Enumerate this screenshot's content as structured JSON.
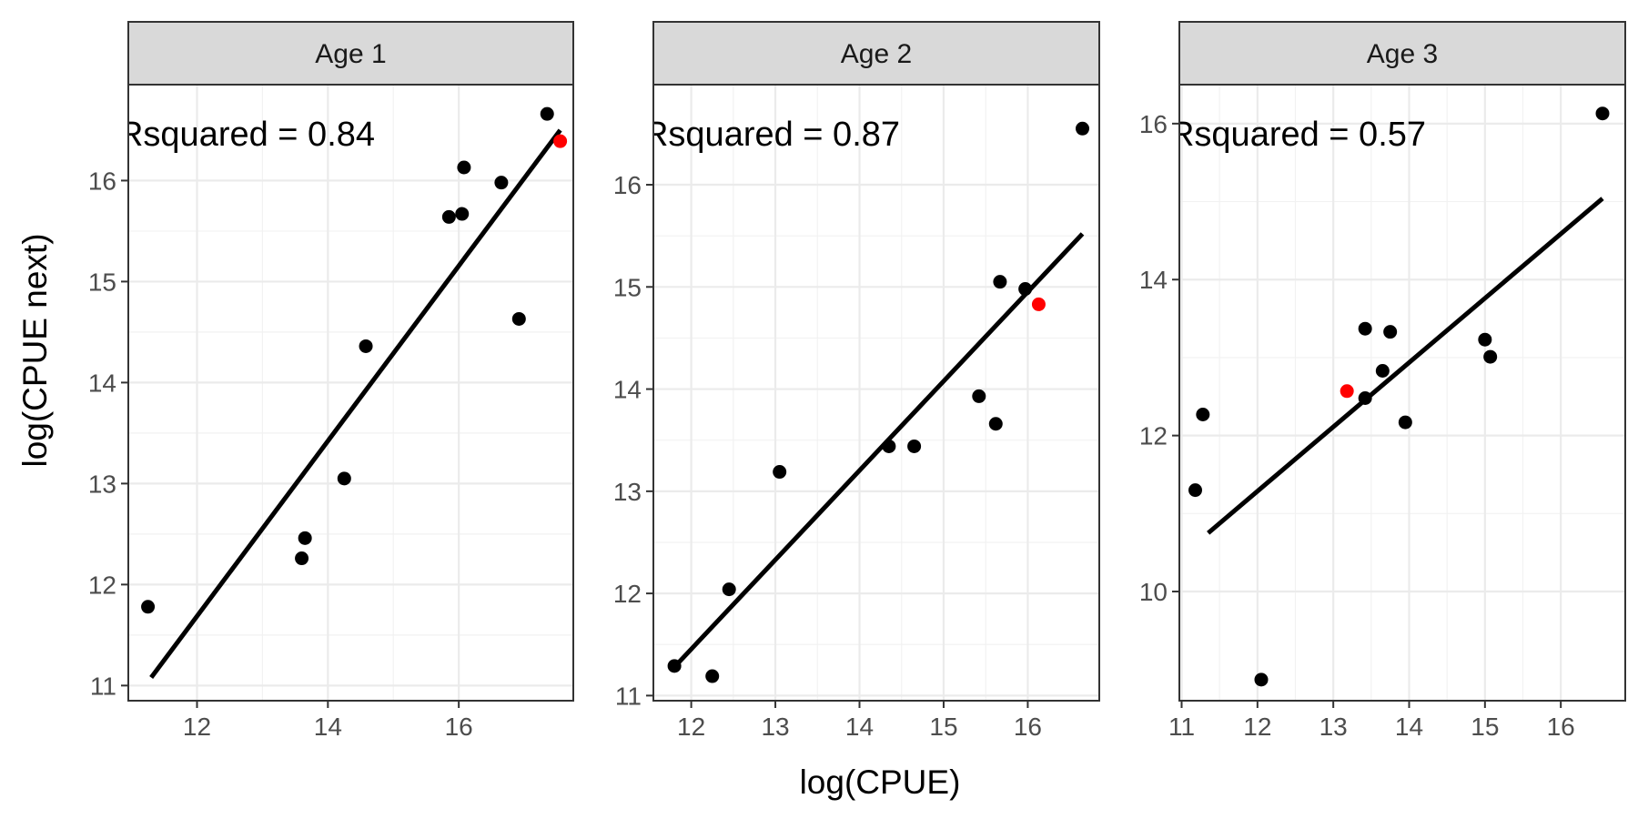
{
  "figure": {
    "xlabel": "log(CPUE)",
    "ylabel": "log(CPUE next)"
  },
  "chart_data": [
    {
      "type": "scatter",
      "title": "Age 1",
      "annotation": "Rsquared = 0.84",
      "xlim": [
        10.95,
        17.75
      ],
      "ylim": [
        10.85,
        16.95
      ],
      "xticks": [
        12,
        14,
        16
      ],
      "yticks": [
        11,
        12,
        13,
        14,
        15,
        16
      ],
      "points": [
        {
          "x": 11.25,
          "y": 11.78
        },
        {
          "x": 13.6,
          "y": 12.26
        },
        {
          "x": 13.65,
          "y": 12.46
        },
        {
          "x": 14.25,
          "y": 13.05
        },
        {
          "x": 14.58,
          "y": 14.36
        },
        {
          "x": 15.85,
          "y": 15.64
        },
        {
          "x": 16.05,
          "y": 15.67
        },
        {
          "x": 16.08,
          "y": 16.13
        },
        {
          "x": 16.65,
          "y": 15.98
        },
        {
          "x": 16.92,
          "y": 14.63
        },
        {
          "x": 17.35,
          "y": 16.66
        }
      ],
      "highlight": {
        "x": 17.55,
        "y": 16.39,
        "color": "#ff0000"
      },
      "fit": {
        "x": [
          11.3,
          17.55
        ],
        "y": [
          11.08,
          16.5
        ]
      }
    },
    {
      "type": "scatter",
      "title": "Age 2",
      "annotation": "Rsquared = 0.87",
      "xlim": [
        11.55,
        16.85
      ],
      "ylim": [
        10.95,
        16.98
      ],
      "xticks": [
        12,
        13,
        14,
        15,
        16
      ],
      "yticks": [
        11,
        12,
        13,
        14,
        15,
        16
      ],
      "points": [
        {
          "x": 11.8,
          "y": 11.29
        },
        {
          "x": 12.25,
          "y": 11.19
        },
        {
          "x": 12.45,
          "y": 12.04
        },
        {
          "x": 13.05,
          "y": 13.19
        },
        {
          "x": 14.35,
          "y": 13.44
        },
        {
          "x": 14.65,
          "y": 13.44
        },
        {
          "x": 15.42,
          "y": 13.93
        },
        {
          "x": 15.62,
          "y": 13.66
        },
        {
          "x": 15.67,
          "y": 15.05
        },
        {
          "x": 15.97,
          "y": 14.98
        },
        {
          "x": 16.65,
          "y": 16.55
        }
      ],
      "highlight": {
        "x": 16.13,
        "y": 14.83,
        "color": "#ff0000"
      },
      "fit": {
        "x": [
          11.8,
          16.65
        ],
        "y": [
          11.28,
          15.52
        ]
      }
    },
    {
      "type": "scatter",
      "title": "Age 3",
      "annotation": "Rsquared = 0.57",
      "xlim": [
        10.97,
        16.85
      ],
      "ylim": [
        8.6,
        16.5
      ],
      "xticks": [
        11,
        12,
        13,
        14,
        15,
        16
      ],
      "yticks": [
        10,
        12,
        14,
        16
      ],
      "points": [
        {
          "x": 11.18,
          "y": 11.3
        },
        {
          "x": 11.28,
          "y": 12.27
        },
        {
          "x": 12.05,
          "y": 8.87
        },
        {
          "x": 13.42,
          "y": 13.37
        },
        {
          "x": 13.42,
          "y": 12.48
        },
        {
          "x": 13.65,
          "y": 12.83
        },
        {
          "x": 13.75,
          "y": 13.33
        },
        {
          "x": 13.95,
          "y": 12.17
        },
        {
          "x": 15.0,
          "y": 13.23
        },
        {
          "x": 15.07,
          "y": 13.01
        },
        {
          "x": 16.55,
          "y": 16.13
        }
      ],
      "highlight": {
        "x": 13.18,
        "y": 12.57,
        "color": "#ff0000"
      },
      "fit": {
        "x": [
          11.35,
          16.55
        ],
        "y": [
          10.75,
          15.04
        ]
      }
    }
  ]
}
